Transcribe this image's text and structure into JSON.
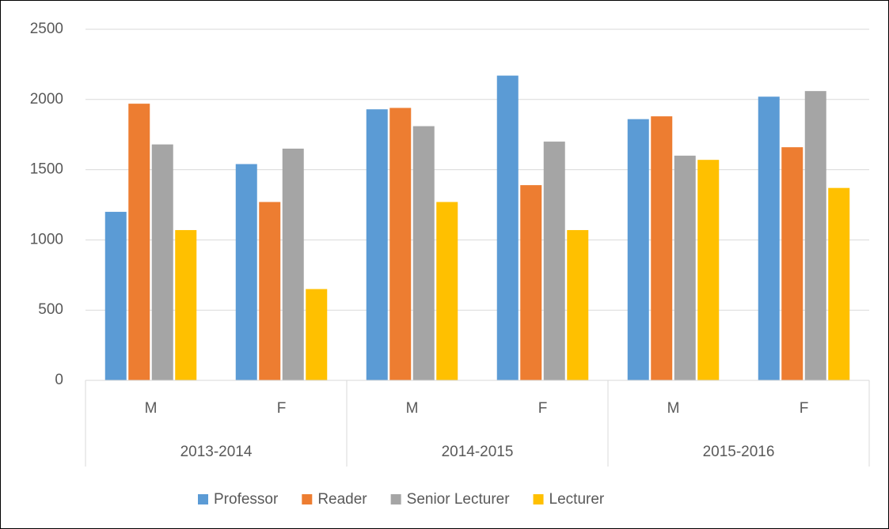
{
  "chart_data": {
    "type": "bar",
    "categories": [
      "M",
      "F",
      "M",
      "F",
      "M",
      "F"
    ],
    "groups": [
      "2013-2014",
      "2014-2015",
      "2015-2016"
    ],
    "series": [
      {
        "name": "Professor",
        "color": "#5b9bd5",
        "values": [
          1200,
          1540,
          1930,
          2170,
          1860,
          2020
        ]
      },
      {
        "name": "Reader",
        "color": "#ed7d31",
        "values": [
          1970,
          1270,
          1940,
          1390,
          1880,
          1660
        ]
      },
      {
        "name": "Senior Lecturer",
        "color": "#a5a5a5",
        "values": [
          1680,
          1650,
          1810,
          1700,
          1600,
          2060
        ]
      },
      {
        "name": "Lecturer",
        "color": "#ffc000",
        "values": [
          1070,
          650,
          1270,
          1070,
          1570,
          1370
        ]
      }
    ],
    "ylim": [
      0,
      2500
    ],
    "yticks": [
      0,
      500,
      1000,
      1500,
      2000,
      2500
    ],
    "grid": true,
    "legend": "bottom"
  }
}
